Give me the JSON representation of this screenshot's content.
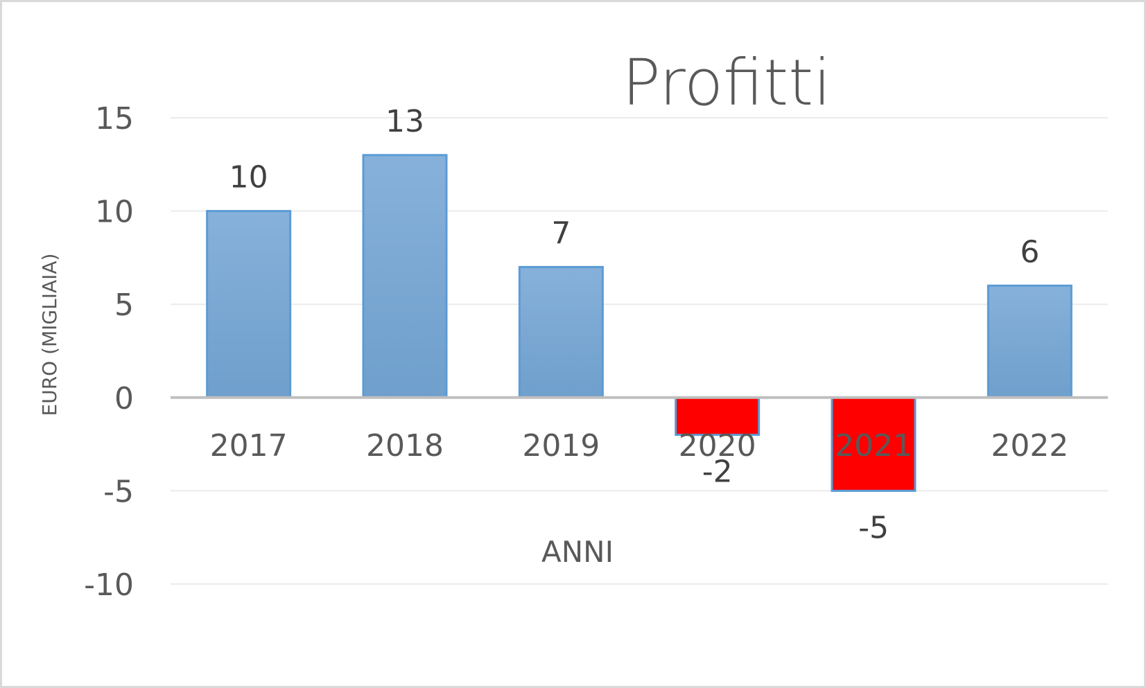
{
  "chart_data": {
    "type": "bar",
    "title": "Profitti",
    "xlabel": "ANNI",
    "ylabel": "EURO (MIGLIAIA)",
    "categories": [
      "2017",
      "2018",
      "2019",
      "2020",
      "2021",
      "2022"
    ],
    "values": [
      10,
      13,
      7,
      -2,
      -5,
      6
    ],
    "data_labels": [
      "10",
      "13",
      "7",
      "-2",
      "-5",
      "6"
    ],
    "y_ticks": [
      15,
      10,
      5,
      0,
      -5,
      -10
    ],
    "y_tick_labels": [
      "15",
      "10",
      "5",
      "0",
      "-5",
      "-10"
    ],
    "ylim": [
      -10,
      15
    ],
    "grid": true,
    "legend": "none",
    "colors": {
      "positive_fill": "#7aa7d2",
      "positive_border": "#5b9bd5",
      "negative_fill": "#ff0000",
      "negative_border": "#5b9bd5",
      "gridline": "#ebebeb",
      "zero_line": "#bfbfbf",
      "text": "#595959"
    }
  }
}
